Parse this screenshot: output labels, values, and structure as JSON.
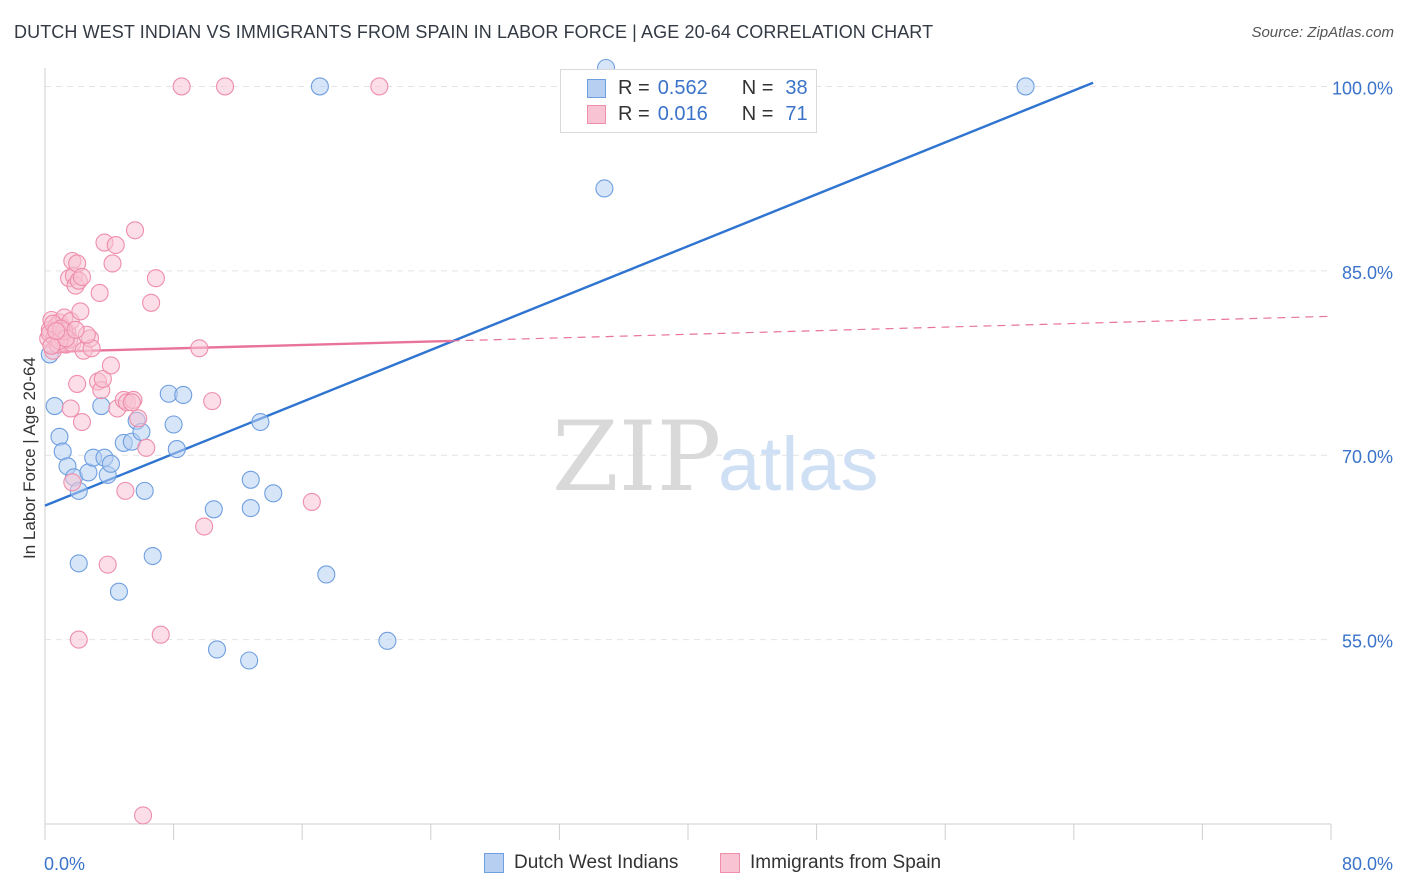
{
  "title": "DUTCH WEST INDIAN VS IMMIGRANTS FROM SPAIN IN LABOR FORCE | AGE 20-64 CORRELATION CHART",
  "source": "Source: ZipAtlas.com",
  "watermark": {
    "zip": "ZIP",
    "atlas": "atlas"
  },
  "legend": {
    "series1": {
      "r_label": "R =",
      "r_value": "0.562",
      "n_label": "N =",
      "n_value": "38"
    },
    "series2": {
      "r_label": "R =",
      "r_value": "0.016",
      "n_label": "N =",
      "n_value": "71"
    }
  },
  "colors": {
    "blue_fill": "#b7d0f2",
    "blue_stroke": "#6f9fe0",
    "blue_line": "#2f74d0",
    "pink_fill": "#f8c3d3",
    "pink_stroke": "#ee8eab",
    "pink_line": "#e8739b",
    "axis_text": "#3a73c9",
    "grid": "#e4e4e4"
  },
  "chart_data": {
    "type": "scatter",
    "title": "DUTCH WEST INDIAN VS IMMIGRANTS FROM SPAIN IN LABOR FORCE | AGE 20-64 CORRELATION CHART",
    "xlabel": "",
    "ylabel": "In Labor Force | Age 20-64",
    "xlim": [
      0,
      80
    ],
    "ylim": [
      40,
      101.5
    ],
    "x_tick_labels": [
      "0.0%",
      "80.0%"
    ],
    "y_ticks": [
      55,
      70,
      85,
      100
    ],
    "y_tick_labels": [
      "55.0%",
      "70.0%",
      "85.0%",
      "100.0%"
    ],
    "series": [
      {
        "name": "Dutch West Indians",
        "color": "blue",
        "points": [
          [
            0.3,
            78.2
          ],
          [
            0.6,
            74.0
          ],
          [
            0.9,
            71.5
          ],
          [
            1.1,
            70.3
          ],
          [
            1.4,
            69.1
          ],
          [
            1.8,
            68.2
          ],
          [
            2.1,
            67.1
          ],
          [
            2.7,
            68.6
          ],
          [
            3.0,
            69.8
          ],
          [
            3.5,
            74.0
          ],
          [
            3.7,
            69.8
          ],
          [
            3.9,
            68.4
          ],
          [
            2.1,
            61.2
          ],
          [
            4.1,
            69.3
          ],
          [
            4.6,
            58.9
          ],
          [
            4.9,
            71.0
          ],
          [
            5.4,
            71.1
          ],
          [
            5.7,
            72.8
          ],
          [
            6.0,
            71.9
          ],
          [
            6.2,
            67.1
          ],
          [
            6.7,
            61.8
          ],
          [
            7.7,
            75.0
          ],
          [
            8.0,
            72.5
          ],
          [
            8.2,
            70.5
          ],
          [
            8.6,
            74.9
          ],
          [
            10.5,
            65.6
          ],
          [
            10.7,
            54.2
          ],
          [
            12.7,
            53.3
          ],
          [
            12.8,
            68.0
          ],
          [
            12.8,
            65.7
          ],
          [
            13.4,
            72.7
          ],
          [
            14.2,
            66.9
          ],
          [
            17.1,
            100.0
          ],
          [
            17.5,
            60.3
          ],
          [
            21.3,
            54.9
          ],
          [
            34.8,
            91.7
          ],
          [
            61.0,
            100.0
          ],
          [
            34.9,
            101.5
          ]
        ]
      },
      {
        "name": "Immigrants from Spain",
        "color": "pink",
        "points": [
          [
            0.2,
            79.5
          ],
          [
            0.3,
            80.2
          ],
          [
            0.4,
            81.0
          ],
          [
            0.5,
            78.5
          ],
          [
            0.6,
            79.6
          ],
          [
            0.7,
            80.5
          ],
          [
            0.8,
            79.0
          ],
          [
            0.9,
            80.8
          ],
          [
            1.0,
            79.7
          ],
          [
            1.1,
            80.4
          ],
          [
            1.2,
            81.2
          ],
          [
            1.3,
            79.0
          ],
          [
            1.4,
            80.0
          ],
          [
            1.5,
            79.4
          ],
          [
            1.6,
            80.9
          ],
          [
            1.7,
            79.1
          ],
          [
            0.3,
            79.9
          ],
          [
            0.5,
            80.7
          ],
          [
            0.9,
            79.3
          ],
          [
            1.2,
            80.1
          ],
          [
            1.5,
            84.4
          ],
          [
            1.7,
            85.8
          ],
          [
            1.8,
            84.6
          ],
          [
            1.9,
            83.8
          ],
          [
            2.0,
            85.6
          ],
          [
            2.1,
            84.2
          ],
          [
            2.3,
            84.5
          ],
          [
            2.2,
            81.7
          ],
          [
            2.4,
            78.5
          ],
          [
            2.8,
            79.5
          ],
          [
            2.9,
            78.7
          ],
          [
            3.3,
            76.0
          ],
          [
            3.5,
            75.3
          ],
          [
            3.6,
            76.2
          ],
          [
            3.4,
            83.2
          ],
          [
            3.7,
            87.3
          ],
          [
            4.2,
            85.6
          ],
          [
            4.4,
            87.1
          ],
          [
            4.5,
            73.8
          ],
          [
            4.9,
            74.5
          ],
          [
            5.1,
            74.3
          ],
          [
            5.5,
            74.5
          ],
          [
            5.6,
            88.3
          ],
          [
            5.8,
            73.0
          ],
          [
            6.3,
            70.6
          ],
          [
            6.6,
            82.4
          ],
          [
            6.9,
            84.4
          ],
          [
            1.6,
            73.8
          ],
          [
            2.0,
            75.8
          ],
          [
            2.3,
            72.7
          ],
          [
            4.1,
            77.3
          ],
          [
            5.0,
            67.1
          ],
          [
            3.9,
            61.1
          ],
          [
            1.7,
            67.8
          ],
          [
            2.1,
            55.0
          ],
          [
            7.2,
            55.4
          ],
          [
            9.6,
            78.7
          ],
          [
            9.9,
            64.2
          ],
          [
            10.4,
            74.4
          ],
          [
            16.6,
            66.2
          ],
          [
            8.5,
            100.0
          ],
          [
            11.2,
            100.0
          ],
          [
            20.8,
            100.0
          ],
          [
            6.1,
            40.7
          ],
          [
            1.0,
            80.3
          ],
          [
            1.3,
            79.5
          ],
          [
            2.6,
            79.8
          ],
          [
            0.4,
            78.9
          ],
          [
            0.7,
            80.1
          ],
          [
            1.9,
            80.2
          ],
          [
            5.4,
            74.3
          ]
        ]
      }
    ],
    "trend_lines": [
      {
        "series": "Dutch West Indians",
        "x0": 0,
        "y0": 65.9,
        "x1": 65.2,
        "y1": 100.3,
        "style": "solid"
      },
      {
        "series": "Immigrants from Spain",
        "x0": 0,
        "y0": 78.4,
        "x1": 25.3,
        "y1": 79.3,
        "style": "solid"
      },
      {
        "series": "Immigrants from Spain",
        "x0": 25.3,
        "y0": 79.3,
        "x1": 80.0,
        "y1": 81.3,
        "style": "dashed"
      }
    ],
    "legend_position": "top-center"
  }
}
